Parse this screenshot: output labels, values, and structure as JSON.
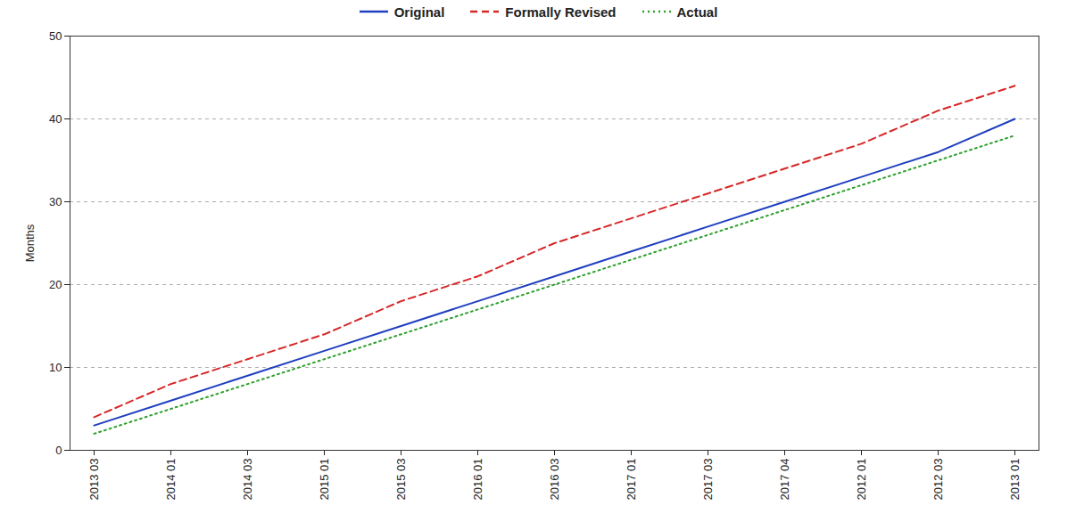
{
  "chart_data": {
    "type": "line",
    "y_label": "Months",
    "categories": [
      "2013 03",
      "2014 01",
      "2014 03",
      "2015 01",
      "2015 03",
      "2016 01",
      "2016 03",
      "2017 01",
      "2017 03",
      "2017 04",
      "2012 01",
      "2012 03",
      "2013 01"
    ],
    "series": [
      {
        "name": "Original",
        "color": "#1f3fbf",
        "line_style": "solid",
        "values": [
          3,
          6,
          9,
          12,
          15,
          18,
          21,
          24,
          27,
          30,
          33,
          36,
          40
        ]
      },
      {
        "name": "Formally Revised",
        "color": "#d62728",
        "line_style": "dashed",
        "values": [
          4,
          8,
          11,
          14,
          18,
          21,
          25,
          28,
          31,
          34,
          37,
          41,
          44
        ]
      },
      {
        "name": "Actual",
        "color": "#2ca02c",
        "line_style": "dotted",
        "values": [
          2,
          5,
          8,
          11,
          14,
          17,
          20,
          23,
          26,
          29,
          32,
          35,
          38
        ]
      }
    ],
    "ylim": [
      0,
      50
    ],
    "yticks": [
      0,
      10,
      20,
      30,
      40,
      50
    ],
    "grid": true,
    "legend": "top"
  }
}
